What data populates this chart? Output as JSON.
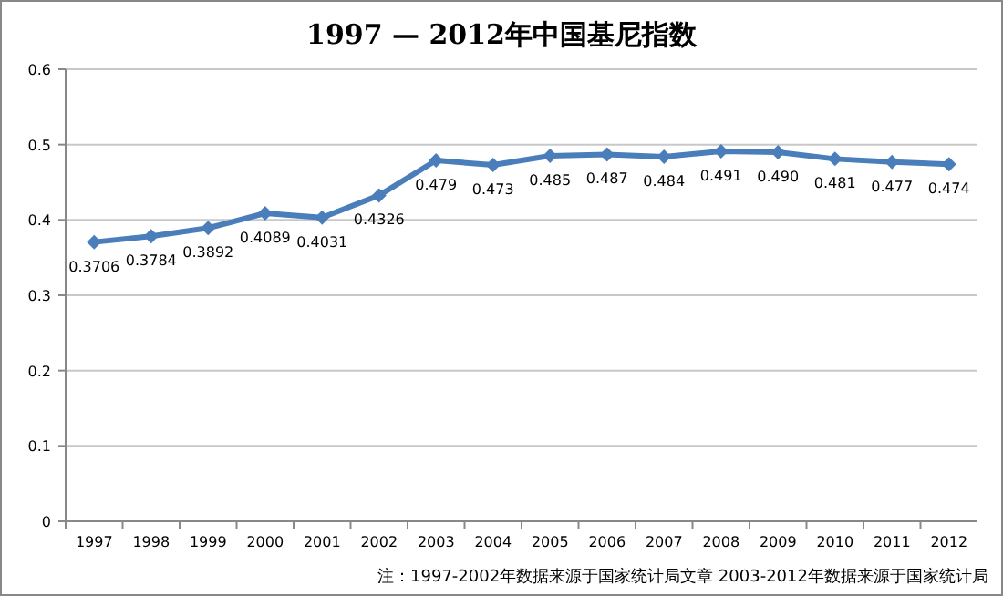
{
  "chart_data": {
    "type": "line",
    "title": "1997 — 2012年中国基尼指数",
    "categories": [
      "1997",
      "1998",
      "1999",
      "2000",
      "2001",
      "2002",
      "2003",
      "2004",
      "2005",
      "2006",
      "2007",
      "2008",
      "2009",
      "2010",
      "2011",
      "2012"
    ],
    "series": [
      {
        "color": "#4a7ebb",
        "values": [
          0.3706,
          0.3784,
          0.3892,
          0.4089,
          0.4031,
          0.4326,
          0.479,
          0.473,
          0.485,
          0.487,
          0.484,
          0.491,
          0.49,
          0.481,
          0.477,
          0.474
        ],
        "value_labels": [
          "0.3706",
          "0.3784",
          "0.3892",
          "0.4089",
          "0.4031",
          "0.4326",
          "0.479",
          "0.473",
          "0.485",
          "0.487",
          "0.484",
          "0.491",
          "0.490",
          "0.481",
          "0.477",
          "0.474"
        ]
      }
    ],
    "ylim": [
      0,
      0.6
    ],
    "yticks": [
      0,
      0.1,
      0.2,
      0.3,
      0.4,
      0.5,
      0.6
    ],
    "grid": "y",
    "marker": "diamond",
    "line_style": "solid",
    "annotations": [
      "注：1997-2002年数据来源于国家统计局文章  2003-2012年数据来源于国家统计局"
    ]
  }
}
